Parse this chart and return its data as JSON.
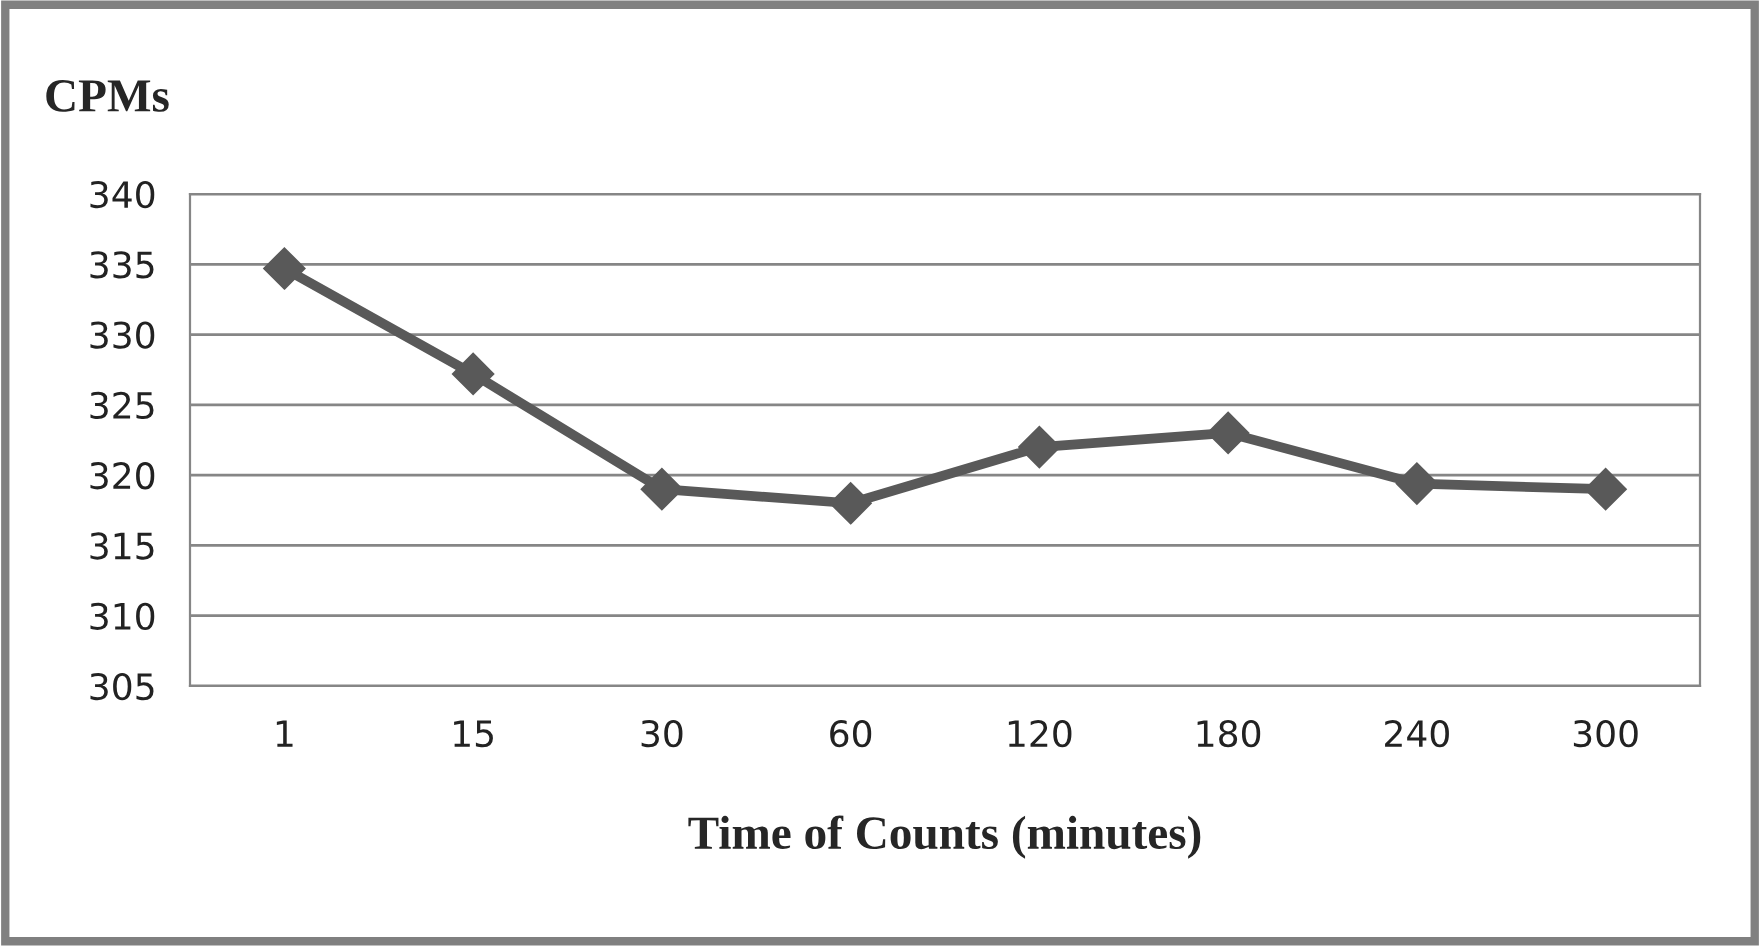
{
  "chart_data": {
    "type": "line",
    "title": "CPMs",
    "xlabel": "Time of Counts (minutes)",
    "categories": [
      "1",
      "15",
      "30",
      "60",
      "120",
      "180",
      "240",
      "300"
    ],
    "series": [
      {
        "color": "#595959",
        "values": [
          334.7,
          327.2,
          319,
          318,
          322,
          323,
          319.4,
          319
        ]
      }
    ],
    "ylim": [
      305,
      340
    ],
    "yticks": [
      305,
      310,
      315,
      320,
      325,
      330,
      335,
      340
    ],
    "grid": "y",
    "marker": "diamond",
    "line_style": "solid"
  }
}
